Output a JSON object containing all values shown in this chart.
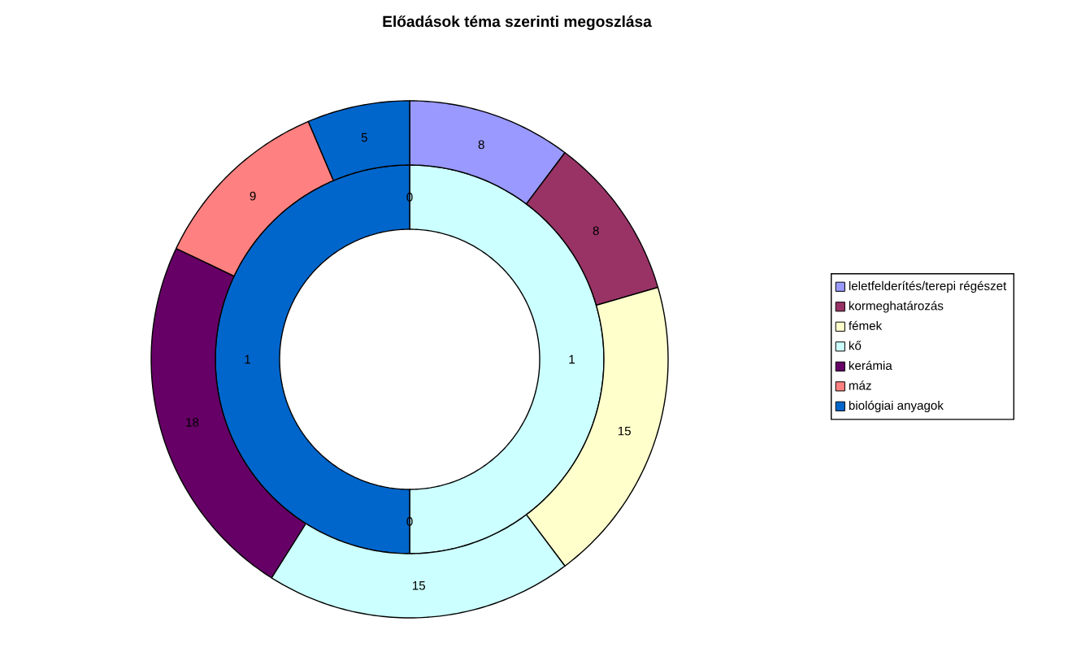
{
  "chart_data": {
    "type": "donut",
    "title": "Előadások téma szerinti megoszlása",
    "categories": [
      "leletfelderítés/terepi régészet",
      "kormeghatározás",
      "fémek",
      "kő",
      "kerámia",
      "máz",
      "biológiai anyagok"
    ],
    "colors": [
      "#9999ff",
      "#993366",
      "#ffffcc",
      "#ccffff",
      "#660066",
      "#ff8080",
      "#0066cc"
    ],
    "series": [
      {
        "values": [
          0,
          0,
          0,
          1,
          0,
          0,
          1
        ],
        "value_labels": [
          "0",
          null,
          null,
          "1",
          "0",
          null,
          "1"
        ]
      },
      {
        "values": [
          8,
          8,
          15,
          15,
          18,
          9,
          5
        ],
        "value_labels": [
          "8",
          "8",
          "15",
          "15",
          "18",
          "9",
          "5"
        ]
      }
    ],
    "legend": "right"
  }
}
